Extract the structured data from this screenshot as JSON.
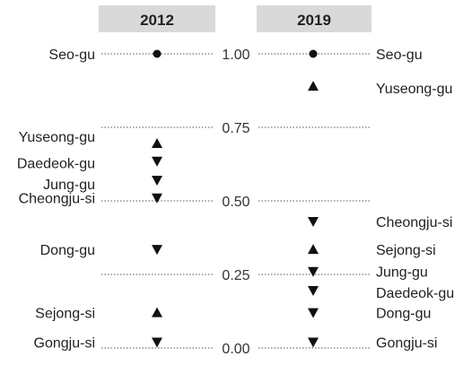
{
  "chart_data": {
    "type": "scatter",
    "title": "",
    "xlabel": "",
    "ylabel": "",
    "ylim": [
      0,
      1
    ],
    "yticks": [
      "0.00",
      "0.25",
      "0.50",
      "0.75",
      "1.00"
    ],
    "grid": true,
    "columns": [
      {
        "name": "2012",
        "points": [
          {
            "label": "Seo-gu",
            "value": 1.0,
            "marker": "circle"
          },
          {
            "label": "Yuseong-gu",
            "value": 0.695,
            "marker": "triangle-up"
          },
          {
            "label": "Daedeok-gu",
            "value": 0.635,
            "marker": "triangle-down"
          },
          {
            "label": "Jung-gu",
            "value": 0.57,
            "marker": "triangle-down"
          },
          {
            "label": "Cheongju-si",
            "value": 0.51,
            "marker": "triangle-down"
          },
          {
            "label": "Dong-gu",
            "value": 0.335,
            "marker": "triangle-down"
          },
          {
            "label": "Sejong-si",
            "value": 0.12,
            "marker": "triangle-up"
          },
          {
            "label": "Gongju-si",
            "value": 0.02,
            "marker": "triangle-down"
          }
        ]
      },
      {
        "name": "2019",
        "points": [
          {
            "label": "Seo-gu",
            "value": 1.0,
            "marker": "circle"
          },
          {
            "label": "Yuseong-gu",
            "value": 0.89,
            "marker": "triangle-up"
          },
          {
            "label": "Cheongju-si",
            "value": 0.43,
            "marker": "triangle-down"
          },
          {
            "label": "Sejong-si",
            "value": 0.335,
            "marker": "triangle-up"
          },
          {
            "label": "Jung-gu",
            "value": 0.26,
            "marker": "triangle-down"
          },
          {
            "label": "Daedeok-gu",
            "value": 0.195,
            "marker": "triangle-down"
          },
          {
            "label": "Dong-gu",
            "value": 0.12,
            "marker": "triangle-down"
          },
          {
            "label": "Gongju-si",
            "value": 0.02,
            "marker": "triangle-down"
          }
        ]
      }
    ]
  },
  "colors": {
    "header_bg": "#d9d9d9",
    "marker": "#111111",
    "gridline": "#555555",
    "text": "#222222"
  }
}
